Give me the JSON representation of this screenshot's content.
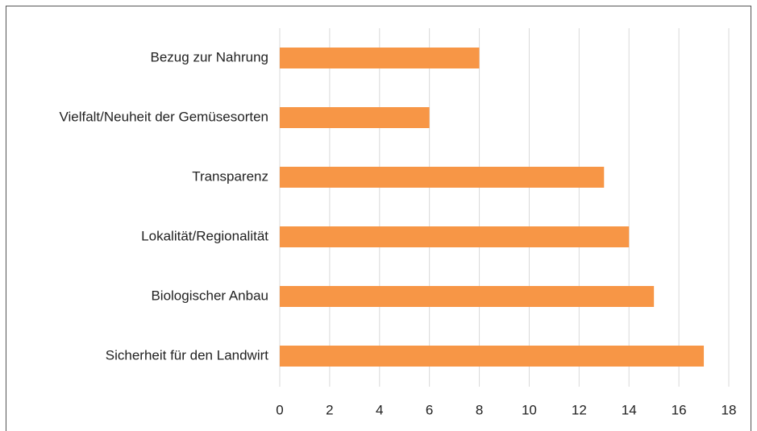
{
  "chart_data": {
    "type": "bar",
    "orientation": "horizontal",
    "categories": [
      "Bezug zur Nahrung",
      "Vielfalt/Neuheit der Gemüsesorten",
      "Transparenz",
      "Lokalität/Regionalität",
      "Biologischer Anbau",
      "Sicherheit für den Landwirt"
    ],
    "values": [
      8,
      6,
      13,
      14,
      15,
      17
    ],
    "color": "#f79646",
    "xlim": [
      0,
      18
    ],
    "xticks": [
      0,
      2,
      4,
      6,
      8,
      10,
      12,
      14,
      16,
      18
    ],
    "grid": true
  }
}
